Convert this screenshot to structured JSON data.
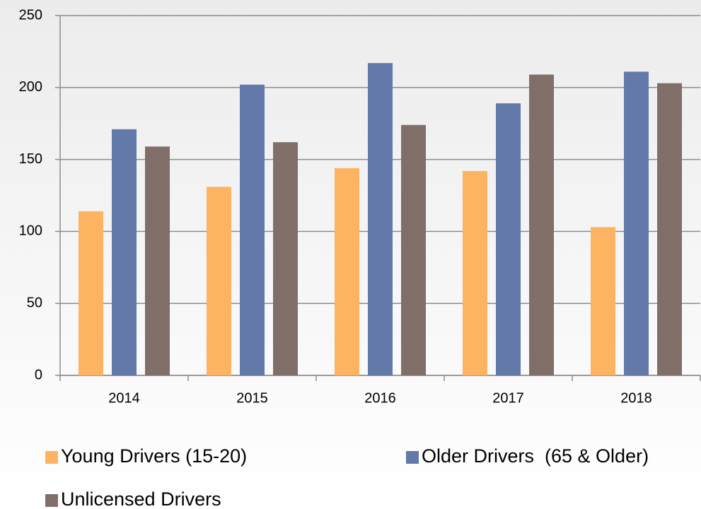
{
  "chart_data": {
    "type": "bar",
    "categories": [
      "2014",
      "2015",
      "2016",
      "2017",
      "2018"
    ],
    "series": [
      {
        "name": "Young Drivers (15-20)",
        "color": "#fdb462",
        "values": [
          114,
          131,
          144,
          142,
          103
        ]
      },
      {
        "name": "Older Drivers  (65 & Older)",
        "color": "#6379a9",
        "values": [
          171,
          202,
          217,
          189,
          211
        ]
      },
      {
        "name": "Unlicensed Drivers",
        "color": "#7f6f68",
        "values": [
          159,
          162,
          174,
          209,
          203
        ]
      }
    ],
    "ylim": [
      0,
      250
    ],
    "yticks": [
      0,
      50,
      100,
      150,
      200,
      250
    ],
    "grid": true,
    "legend": "bottom"
  }
}
